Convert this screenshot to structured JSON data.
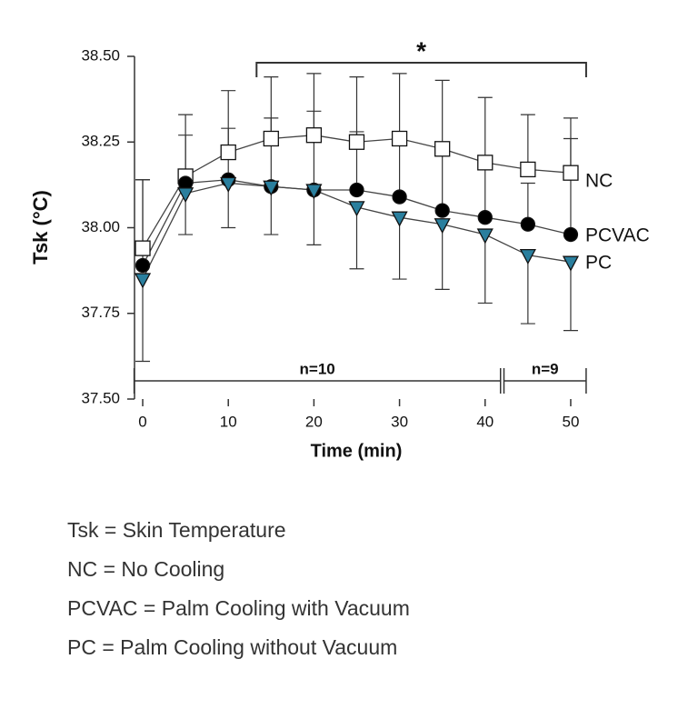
{
  "chart_data": {
    "type": "line",
    "x_label": "Time (min)",
    "y_label": "Tsk (°C)",
    "x": [
      0,
      5,
      10,
      15,
      20,
      25,
      30,
      35,
      40,
      45,
      50
    ],
    "xlim": [
      -1,
      52
    ],
    "xticks": [
      0,
      10,
      20,
      30,
      40,
      50
    ],
    "ylim": [
      37.5,
      38.5
    ],
    "yticks": [
      {
        "value": 37.5,
        "label": "37.50"
      },
      {
        "value": 37.75,
        "label": "37.75"
      },
      {
        "value": 38.0,
        "label": "38.00"
      },
      {
        "value": 38.25,
        "label": "38.25"
      },
      {
        "value": 38.5,
        "label": "38.50"
      }
    ],
    "series": [
      {
        "name": "NC",
        "color": "#ffffff",
        "marker": "square",
        "error_direction": "up",
        "values": [
          37.94,
          38.15,
          38.22,
          38.26,
          38.27,
          38.25,
          38.26,
          38.23,
          38.19,
          38.17,
          38.16
        ],
        "errors": [
          0.2,
          0.18,
          0.18,
          0.18,
          0.18,
          0.19,
          0.19,
          0.2,
          0.19,
          0.16,
          0.16
        ]
      },
      {
        "name": "PCVAC",
        "color": "#000000",
        "marker": "circle",
        "error_direction": "up",
        "values": [
          37.89,
          38.13,
          38.14,
          38.12,
          38.11,
          38.11,
          38.09,
          38.05,
          38.03,
          38.01,
          37.98
        ],
        "errors": [
          0.25,
          0.14,
          0.15,
          0.2,
          0.23,
          0.17,
          0.18,
          0.18,
          0.17,
          0.12,
          0.28
        ]
      },
      {
        "name": "PC",
        "color": "#2a7f9e",
        "marker": "triangle-down",
        "error_direction": "down",
        "values": [
          37.85,
          38.1,
          38.13,
          38.12,
          38.11,
          38.06,
          38.03,
          38.01,
          37.98,
          37.92,
          37.9
        ],
        "errors": [
          0.24,
          0.12,
          0.13,
          0.14,
          0.16,
          0.18,
          0.18,
          0.19,
          0.2,
          0.2,
          0.2
        ]
      }
    ],
    "annotations": [
      {
        "text": "*",
        "x": [
          13.3,
          51.8
        ],
        "position": "top"
      },
      {
        "text": "n=10",
        "x": [
          -1,
          41.8
        ],
        "position": "bottom"
      },
      {
        "text": "n=9",
        "x": [
          42.2,
          51.8
        ],
        "position": "bottom"
      }
    ]
  },
  "footnotes": [
    "Tsk = Skin Temperature",
    "NC = No Cooling",
    "PCVAC = Palm Cooling with Vacuum",
    "PC = Palm Cooling without Vacuum"
  ]
}
